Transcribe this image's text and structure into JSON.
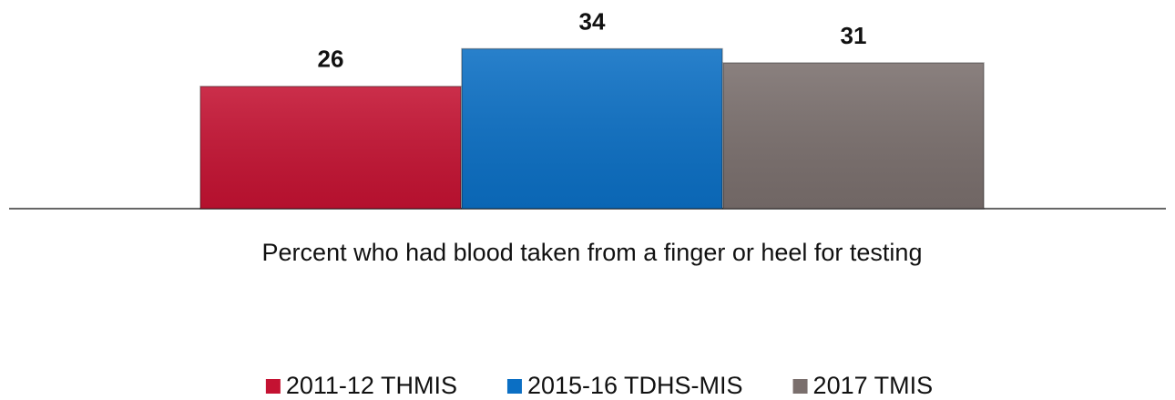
{
  "chart_data": {
    "type": "bar",
    "categories": [
      "Percent who had blood taken from a finger or heel for testing"
    ],
    "series": [
      {
        "name": "2011-12 THMIS",
        "color": "#c41232",
        "values": [
          26
        ]
      },
      {
        "name": "2015-16 TDHS-MIS",
        "color": "#0b6fc4",
        "values": [
          34
        ]
      },
      {
        "name": "2017 TMIS",
        "color": "#7a6f6d",
        "values": [
          31
        ]
      }
    ],
    "legend": "bottom"
  }
}
